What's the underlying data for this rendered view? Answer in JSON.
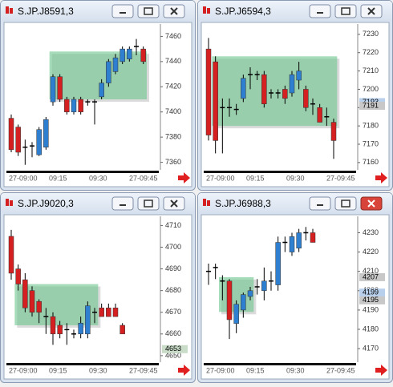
{
  "windows": [
    {
      "title": "S.JP.J8591,3",
      "chart_data": {
        "type": "candlestick",
        "up_color": "#2f7fd0",
        "down_color": "#d42020",
        "ylim": [
          7354,
          7466
        ],
        "yticks": [
          7360,
          7380,
          7400,
          7420,
          7440,
          7460
        ],
        "xticks": [
          "27-09:00",
          "09:15",
          "09:30",
          "27-09:45"
        ],
        "zone": {
          "x": [
            6,
            19
          ],
          "y": [
            7410,
            7448
          ]
        },
        "price_marks": [],
        "candles": {
          "open": [
            7395,
            7388,
            7372,
            7373,
            7366,
            7372,
            7408,
            7428,
            7410,
            7400,
            7410,
            7408,
            7408,
            7412,
            7423,
            7432,
            7440,
            7442,
            7452,
            7450
          ],
          "high": [
            7398,
            7390,
            7378,
            7376,
            7388,
            7396,
            7430,
            7430,
            7412,
            7412,
            7412,
            7410,
            7410,
            7426,
            7442,
            7446,
            7452,
            7452,
            7458,
            7452
          ],
          "low": [
            7368,
            7365,
            7358,
            7364,
            7365,
            7370,
            7405,
            7408,
            7398,
            7398,
            7398,
            7405,
            7390,
            7410,
            7420,
            7430,
            7438,
            7440,
            7445,
            7438
          ],
          "close": [
            7370,
            7368,
            7372,
            7373,
            7386,
            7394,
            7428,
            7410,
            7400,
            7410,
            7400,
            7408,
            7408,
            7423,
            7440,
            7443,
            7450,
            7450,
            7452,
            7440
          ]
        }
      }
    },
    {
      "title": "S.JP.J6594,3",
      "chart_data": {
        "type": "candlestick",
        "up_color": "#2f7fd0",
        "down_color": "#d42020",
        "ylim": [
          7156,
          7233
        ],
        "yticks": [
          7160,
          7170,
          7180,
          7190,
          7200,
          7210,
          7220,
          7230
        ],
        "xticks": [
          "27-09:00",
          "09:15",
          "09:30",
          "27-09:45"
        ],
        "zone": {
          "x": [
            1,
            18
          ],
          "y": [
            7180,
            7218
          ]
        },
        "price_marks": [
          {
            "value": 7193,
            "color": "#b8d0ec"
          },
          {
            "value": 7191,
            "color": "#c8c8c8"
          }
        ],
        "candles": {
          "open": [
            7222,
            7215,
            7190,
            7190,
            7189,
            7195,
            7208,
            7208,
            7208,
            7198,
            7198,
            7200,
            7198,
            7205,
            7200,
            7192,
            7190,
            7185,
            7182
          ],
          "high": [
            7228,
            7218,
            7195,
            7195,
            7192,
            7208,
            7212,
            7210,
            7210,
            7200,
            7200,
            7202,
            7210,
            7215,
            7202,
            7195,
            7192,
            7190,
            7184
          ],
          "low": [
            7172,
            7165,
            7165,
            7185,
            7186,
            7193,
            7200,
            7205,
            7190,
            7195,
            7195,
            7192,
            7196,
            7200,
            7188,
            7186,
            7182,
            7180,
            7162
          ],
          "close": [
            7175,
            7172,
            7190,
            7190,
            7189,
            7206,
            7208,
            7208,
            7192,
            7198,
            7198,
            7195,
            7208,
            7210,
            7190,
            7192,
            7182,
            7185,
            7172
          ]
        }
      }
    },
    {
      "title": "S.JP.J9020,3",
      "chart_data": {
        "type": "candlestick",
        "up_color": "#2f7fd0",
        "down_color": "#d42020",
        "ylim": [
          4647,
          4712
        ],
        "yticks": [
          4650,
          4660,
          4670,
          4680,
          4690,
          4700,
          4710
        ],
        "xticks": [
          "27-09:00",
          "09:15",
          "09:30",
          "27-09:45"
        ],
        "zone": {
          "x": [
            1,
            12
          ],
          "y": [
            4664,
            4683
          ]
        },
        "price_marks": [
          {
            "value": 4653,
            "color": "#c8dcc8"
          }
        ],
        "candles": {
          "open": [
            4705,
            4690,
            4685,
            4680,
            4675,
            4668,
            4668,
            4664,
            4662,
            4660,
            4660,
            4660,
            4670,
            4672,
            4672,
            4672,
            4664
          ],
          "high": [
            4708,
            4692,
            4688,
            4682,
            4676,
            4672,
            4670,
            4666,
            4665,
            4662,
            4668,
            4675,
            4672,
            4674,
            4674,
            4674,
            4665
          ],
          "low": [
            4685,
            4680,
            4670,
            4668,
            4665,
            4660,
            4655,
            4658,
            4655,
            4658,
            4658,
            4658,
            4665,
            4668,
            4668,
            4668,
            4660
          ],
          "close": [
            4688,
            4683,
            4672,
            4670,
            4670,
            4668,
            4660,
            4660,
            4662,
            4660,
            4665,
            4673,
            4670,
            4668,
            4668,
            4668,
            4660
          ]
        }
      }
    },
    {
      "title": "S.JP.J6988,3",
      "active": true,
      "chart_data": {
        "type": "candlestick",
        "up_color": "#2f7fd0",
        "down_color": "#d42020",
        "ylim": [
          4163,
          4236
        ],
        "yticks": [
          4170,
          4180,
          4190,
          4200,
          4210,
          4220,
          4230
        ],
        "xticks": [
          "27-09:00",
          "09:15",
          "09:30",
          "27-09:45"
        ],
        "zone": {
          "x": [
            2,
            6
          ],
          "y": [
            4189,
            4207
          ]
        },
        "price_marks": [
          {
            "value": 4207,
            "color": "#c8c8c8"
          },
          {
            "value": 4199,
            "color": "#b8d0ec"
          },
          {
            "value": 4195,
            "color": "#c8c8c8"
          }
        ],
        "candles": {
          "open": [
            4210,
            4212,
            4205,
            4205,
            4183,
            4190,
            4197,
            4202,
            4200,
            4205,
            4203,
            4225,
            4220,
            4222,
            4230,
            4230
          ],
          "high": [
            4214,
            4214,
            4208,
            4206,
            4195,
            4199,
            4202,
            4206,
            4212,
            4210,
            4228,
            4228,
            4230,
            4232,
            4233,
            4232
          ],
          "low": [
            4203,
            4206,
            4195,
            4175,
            4178,
            4186,
            4195,
            4198,
            4195,
            4200,
            4200,
            4220,
            4218,
            4220,
            4226,
            4225
          ],
          "close": [
            4210,
            4212,
            4205,
            4185,
            4193,
            4198,
            4200,
            4202,
            4205,
            4205,
            4225,
            4225,
            4228,
            4230,
            4230,
            4225
          ]
        }
      }
    }
  ]
}
